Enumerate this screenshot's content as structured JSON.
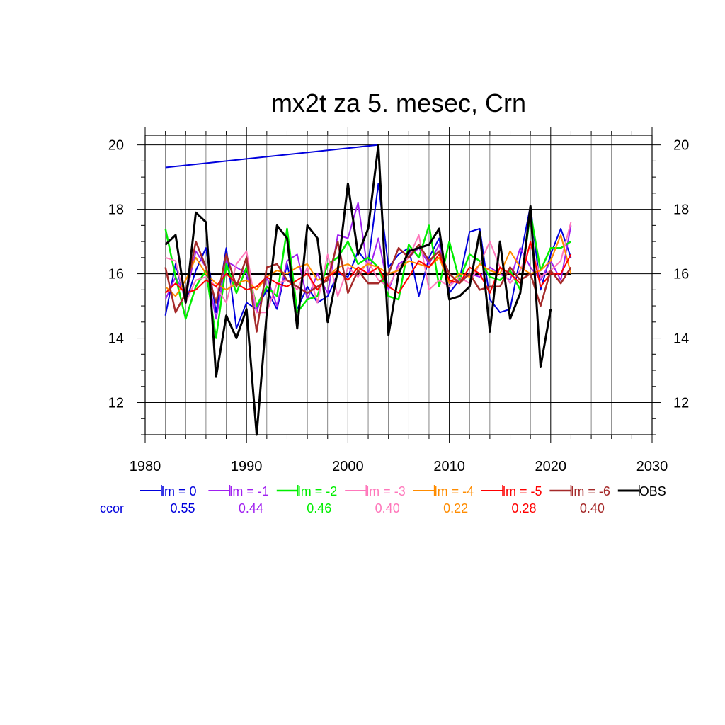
{
  "chart_data": {
    "type": "line",
    "title": "mx2t za 5. mesec, Crn",
    "xlabel": "",
    "ylabel": "",
    "xlim": [
      1980,
      2030
    ],
    "ylim": [
      11,
      20.3
    ],
    "x_ticks": [
      "1980",
      "1990",
      "2000",
      "2010",
      "2020",
      "2030"
    ],
    "y_ticks": [
      "12",
      "14",
      "16",
      "18",
      "20"
    ],
    "y_tick_values": [
      12,
      14,
      16,
      18,
      20
    ],
    "grid": true,
    "legend_position": "bottom",
    "ccor_label": "ccor",
    "years": [
      1982,
      1983,
      1984,
      1985,
      1986,
      1987,
      1988,
      1989,
      1990,
      1991,
      1992,
      1993,
      1994,
      1995,
      1996,
      1997,
      1998,
      1999,
      2000,
      2001,
      2002,
      2003,
      2004,
      2005,
      2006,
      2007,
      2008,
      2009,
      2010,
      2011,
      2012,
      2013,
      2014,
      2015,
      2016,
      2017,
      2018,
      2019,
      2020,
      2021,
      2022
    ],
    "reference_line": {
      "value": 16,
      "color": "#000000"
    },
    "extra_segment": {
      "x": [
        1982,
        2003
      ],
      "y": [
        19.3,
        20.0
      ],
      "color": "#0000dd"
    },
    "series": [
      {
        "name": "lm = 0",
        "ccor": "0.55",
        "color": "#0000dd",
        "width": 2,
        "values": [
          14.7,
          16.3,
          15.1,
          16.1,
          16.8,
          14.8,
          16.8,
          14.3,
          15.1,
          14.9,
          15.5,
          14.9,
          16.3,
          14.9,
          15.6,
          15.1,
          15.3,
          16.0,
          15.9,
          16.7,
          16.3,
          18.8,
          16.2,
          16.6,
          16.8,
          15.3,
          16.5,
          17.1,
          15.4,
          15.8,
          17.3,
          17.4,
          15.2,
          14.8,
          14.9,
          16.5,
          18.1,
          15.5,
          16.6,
          17.4,
          16.5
        ]
      },
      {
        "name": "lm = -1",
        "ccor": "0.44",
        "color": "#a020f0",
        "width": 2,
        "values": [
          15.2,
          15.9,
          15.3,
          16.7,
          16.2,
          14.6,
          16.4,
          16.2,
          16.0,
          14.8,
          15.9,
          15.0,
          16.4,
          16.6,
          15.2,
          16.0,
          15.4,
          17.2,
          17.1,
          18.2,
          16.0,
          17.1,
          15.5,
          16.3,
          16.5,
          16.8,
          16.3,
          16.9,
          15.7,
          15.8,
          16.0,
          15.9,
          16.2,
          16.0,
          15.8,
          16.8,
          16.2,
          15.8,
          16.4,
          15.8,
          17.5
        ]
      },
      {
        "name": "lm = -2",
        "ccor": "0.46",
        "color": "#00ee00",
        "width": 2.5,
        "values": [
          17.4,
          15.9,
          14.6,
          15.6,
          16.1,
          14.0,
          16.3,
          15.4,
          16.2,
          15.0,
          15.6,
          15.3,
          17.4,
          14.8,
          15.2,
          15.3,
          16.3,
          16.5,
          17.0,
          16.3,
          16.5,
          16.2,
          15.3,
          15.2,
          16.9,
          16.5,
          17.5,
          15.6,
          17.0,
          15.8,
          16.6,
          16.4,
          15.9,
          15.8,
          16.1,
          15.5,
          17.9,
          16.1,
          16.8,
          16.8,
          17.0
        ]
      },
      {
        "name": "lm = -3",
        "ccor": "0.40",
        "color": "#ff77bb",
        "width": 2,
        "values": [
          16.5,
          16.4,
          15.1,
          15.8,
          15.9,
          15.6,
          15.1,
          16.3,
          16.7,
          14.8,
          14.8,
          15.7,
          15.8,
          15.5,
          16.2,
          15.1,
          16.6,
          15.3,
          16.2,
          15.9,
          16.4,
          15.8,
          15.6,
          16.2,
          16.5,
          17.2,
          15.5,
          15.8,
          15.6,
          15.9,
          15.7,
          16.3,
          17.0,
          16.2,
          15.7,
          16.1,
          16.9,
          15.9,
          16.1,
          16.4,
          17.6
        ]
      },
      {
        "name": "lm = -4",
        "ccor": "0.22",
        "color": "#ff8c00",
        "width": 2,
        "values": [
          15.6,
          15.3,
          15.8,
          16.5,
          16.0,
          15.7,
          15.5,
          15.7,
          15.8,
          15.5,
          15.9,
          16.1,
          16.0,
          16.2,
          16.3,
          15.8,
          15.9,
          16.2,
          16.3,
          16.1,
          16.3,
          16.2,
          16.0,
          16.1,
          16.4,
          16.3,
          16.2,
          16.5,
          15.7,
          16.0,
          15.9,
          16.3,
          16.1,
          16.0,
          16.7,
          16.2,
          16.0,
          16.1,
          16.4,
          17.2,
          16.0
        ]
      },
      {
        "name": "lm = -5",
        "ccor": "0.28",
        "color": "#ff0000",
        "width": 2,
        "values": [
          15.4,
          15.7,
          15.4,
          15.5,
          15.8,
          15.6,
          16.0,
          15.7,
          15.5,
          15.6,
          15.9,
          15.7,
          15.6,
          15.8,
          16.0,
          15.5,
          15.9,
          16.1,
          15.8,
          16.2,
          16.0,
          16.2,
          15.6,
          15.4,
          15.9,
          16.4,
          16.2,
          16.6,
          15.8,
          15.7,
          16.2,
          16.0,
          15.4,
          16.2,
          16.0,
          15.7,
          17.0,
          15.6,
          16.0,
          16.0,
          16.6
        ]
      },
      {
        "name": "lm = -6",
        "ccor": "0.40",
        "color": "#a52a2a",
        "width": 2.5,
        "values": [
          16.2,
          14.8,
          15.4,
          17.0,
          16.2,
          15.1,
          16.6,
          15.6,
          16.5,
          14.2,
          16.2,
          16.3,
          15.8,
          15.6,
          15.4,
          15.6,
          15.8,
          17.0,
          15.4,
          16.1,
          15.7,
          15.7,
          16.0,
          16.8,
          16.5,
          16.9,
          16.4,
          16.7,
          16.0,
          15.7,
          16.0,
          15.5,
          15.6,
          15.6,
          16.2,
          15.8,
          16.0,
          15.0,
          16.1,
          15.7,
          16.2
        ]
      },
      {
        "name": "OBS",
        "ccor": "",
        "color": "#000000",
        "width": 3,
        "values": [
          16.9,
          17.2,
          15.1,
          17.9,
          17.6,
          12.8,
          14.7,
          14.0,
          14.9,
          11.0,
          14.8,
          17.5,
          17.1,
          14.3,
          17.5,
          17.1,
          14.5,
          16.1,
          18.8,
          16.6,
          17.4,
          20.0,
          14.1,
          16.0,
          16.7,
          16.8,
          16.9,
          17.4,
          15.2,
          15.3,
          15.6,
          17.3,
          14.2,
          17.0,
          14.6,
          15.4,
          18.1,
          13.1,
          14.9,
          null,
          null
        ]
      }
    ]
  }
}
